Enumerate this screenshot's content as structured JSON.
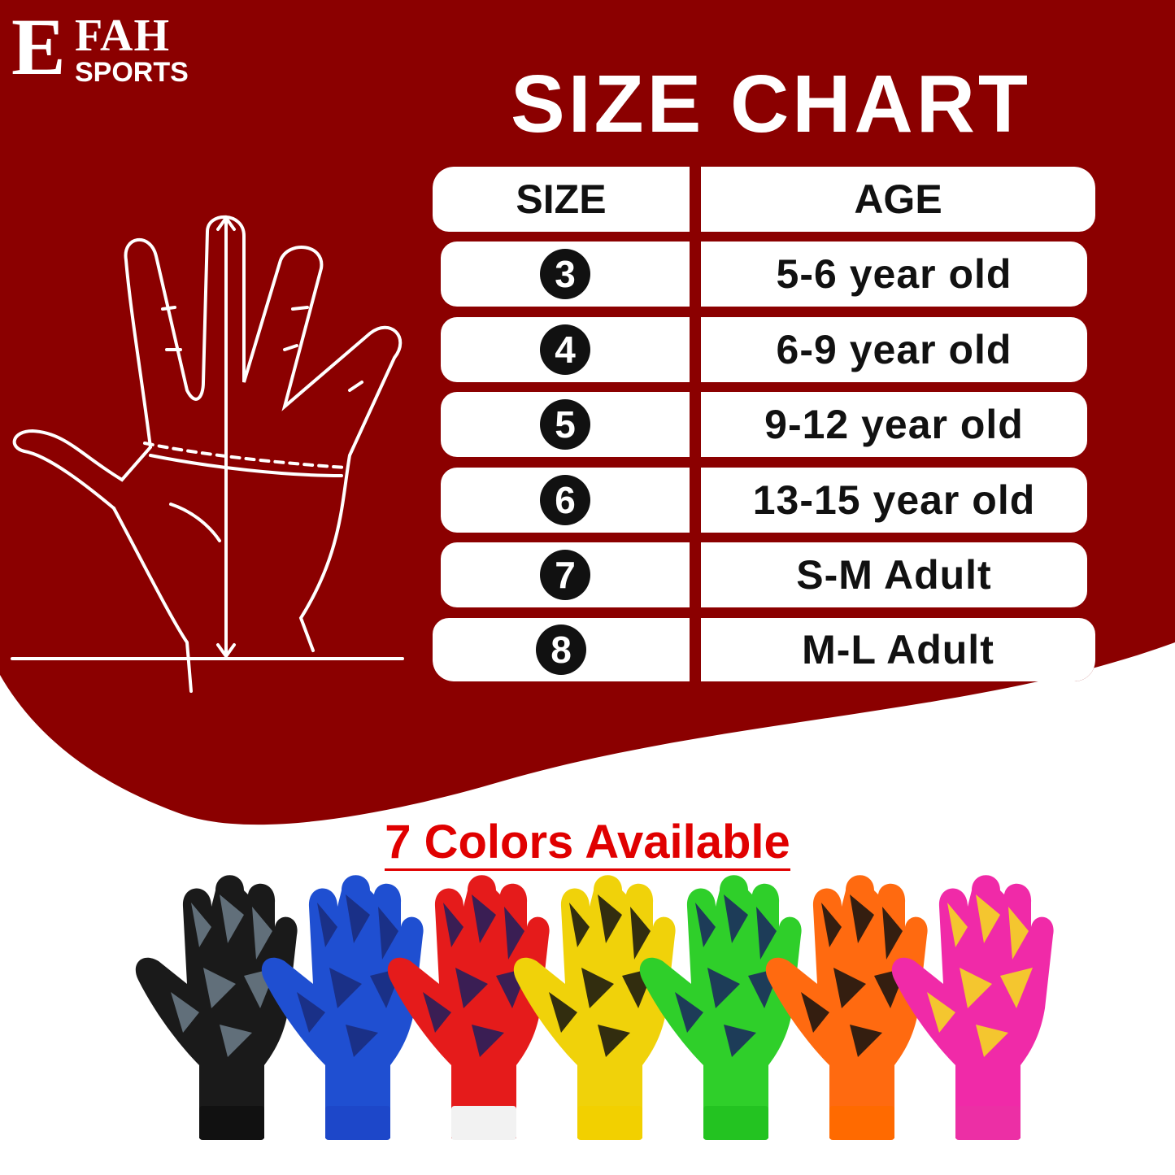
{
  "brand": {
    "logo_letter": "E",
    "logo_top": "FAH",
    "logo_bottom": "SPORTS"
  },
  "title": "SIZE CHART",
  "table": {
    "headers": [
      "SIZE",
      "AGE"
    ],
    "rows": [
      {
        "size": "3",
        "age": "5-6 year old"
      },
      {
        "size": "4",
        "age": "6-9 year old"
      },
      {
        "size": "5",
        "age": "9-12 year old"
      },
      {
        "size": "6",
        "age": "13-15 year old"
      },
      {
        "size": "7",
        "age": "S-M Adult"
      },
      {
        "size": "8",
        "age": "M-L Adult"
      }
    ]
  },
  "colors_heading": "7 Colors Available",
  "theme": {
    "background_red": "#8b0000",
    "heading_red": "#e00000"
  },
  "gloves": [
    {
      "name": "black",
      "base": "#1a1a1a",
      "accent": "#6f7f8c",
      "cuff": "#111111"
    },
    {
      "name": "blue",
      "base": "#1f4fd1",
      "accent": "#1a2a7a",
      "cuff": "#1d47c9"
    },
    {
      "name": "red",
      "base": "#e51b1b",
      "accent": "#1c1f5e",
      "cuff": "#f2f2f2"
    },
    {
      "name": "yellow",
      "base": "#f0d20a",
      "accent": "#111111",
      "cuff": "#f2d000"
    },
    {
      "name": "green",
      "base": "#2fcf2a",
      "accent": "#1a2260",
      "cuff": "#23c321"
    },
    {
      "name": "orange",
      "base": "#ff6a10",
      "accent": "#111111",
      "cuff": "#ff6a00"
    },
    {
      "name": "pink",
      "base": "#f02aa8",
      "accent": "#f5e21a",
      "cuff": "#ec2fa5"
    }
  ]
}
